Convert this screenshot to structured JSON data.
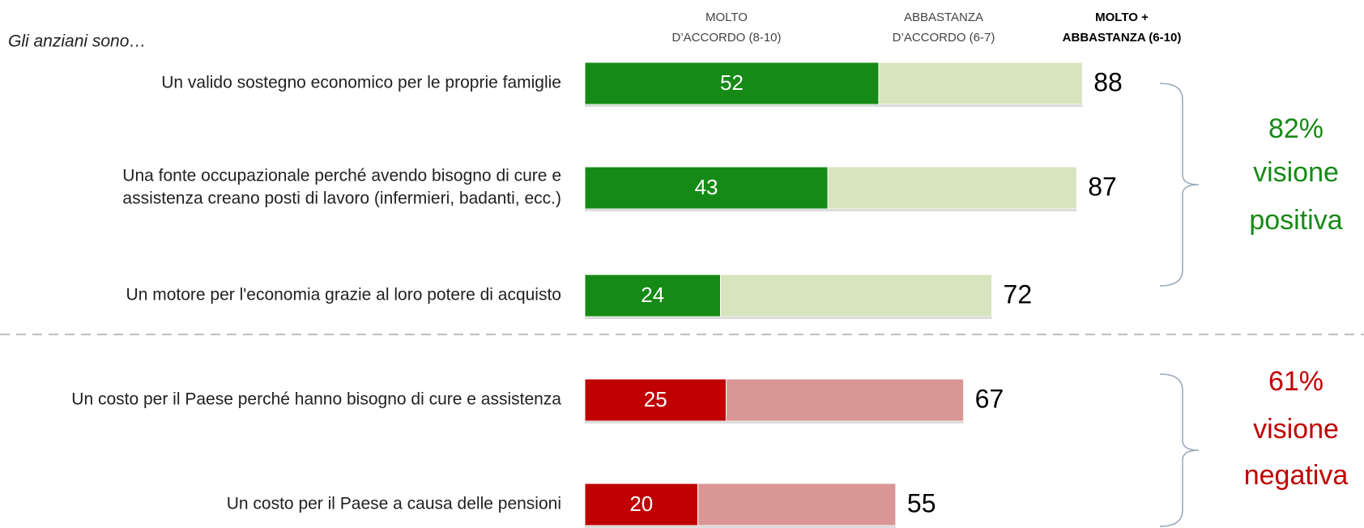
{
  "chart_data": {
    "type": "stacked-bar-horizontal",
    "title": "Gli anziani sono…",
    "categories": [
      [
        "Un valido sostegno economico per le proprie famiglie"
      ],
      [
        "Una fonte occupazionale perché avendo bisogno di cure e",
        "assistenza creano posti di lavoro (infermieri, badanti, ecc.)"
      ],
      [
        "Un motore per l'economia grazie al loro potere di acquisto"
      ],
      [
        "Un costo per il Paese perché hanno bisogno di cure e assistenza"
      ],
      [
        "Un costo per il Paese a causa delle pensioni"
      ]
    ],
    "series": [
      {
        "name": [
          "MOLTO",
          "D’ACCORDO (8-10)"
        ],
        "colors": [
          "#168a16",
          "#168a16",
          "#168a16",
          "#c00000",
          "#c00000"
        ],
        "values": [
          52,
          43,
          24,
          25,
          20
        ]
      },
      {
        "name": [
          "ABBASTANZA",
          "D’ACCORDO (6-7)"
        ],
        "colors": [
          "#d7e4bd",
          "#d7e4bd",
          "#d7e4bd",
          "#d99694",
          "#d99694"
        ],
        "values": [
          36,
          44,
          48,
          42,
          35
        ]
      }
    ],
    "totals_header": [
      "MOLTO +",
      "ABBASTANZA (6-10)"
    ],
    "totals": [
      88,
      87,
      72,
      67,
      55
    ],
    "xlim": [
      0,
      100
    ],
    "groups": [
      {
        "text": [
          "82%",
          "visione",
          "positiva"
        ],
        "color": "#168a16"
      },
      {
        "text": [
          "61%",
          "visione",
          "negativa"
        ],
        "color": "#c00000"
      }
    ]
  }
}
